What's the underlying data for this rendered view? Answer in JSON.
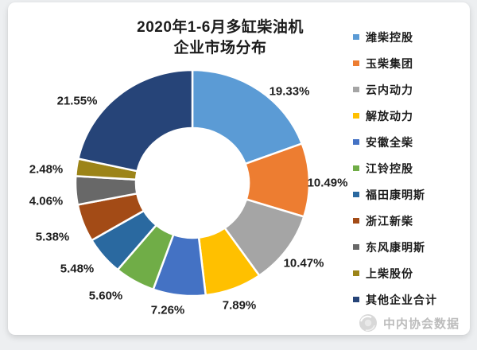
{
  "title": {
    "line1": "2020年1-6月多缸柴油机",
    "line2": "企业市场分布"
  },
  "chart_data": {
    "type": "pie",
    "subtype": "donut",
    "title": "2020年1-6月多缸柴油机企业市场分布",
    "unit": "percent",
    "start_angle_deg": 0,
    "direction": "clockwise",
    "inner_radius_ratio": 0.48,
    "legend_position": "right",
    "series": [
      {
        "name": "潍柴控股",
        "value": 19.33,
        "label": "19.33%",
        "color": "#5B9BD5"
      },
      {
        "name": "玉柴集团",
        "value": 10.49,
        "label": "10.49%",
        "color": "#ED7D31"
      },
      {
        "name": "云内动力",
        "value": 10.47,
        "label": "10.47%",
        "color": "#A5A5A5"
      },
      {
        "name": "解放动力",
        "value": 7.89,
        "label": "7.89%",
        "color": "#FFC000"
      },
      {
        "name": "安徽全柴",
        "value": 7.26,
        "label": "7.26%",
        "color": "#4472C4"
      },
      {
        "name": "江铃控股",
        "value": 5.6,
        "label": "5.60%",
        "color": "#70AD47"
      },
      {
        "name": "福田康明斯",
        "value": 5.48,
        "label": "5.48%",
        "color": "#2A69A0"
      },
      {
        "name": "浙江新柴",
        "value": 5.38,
        "label": "5.38%",
        "color": "#A34B16"
      },
      {
        "name": "东风康明斯",
        "value": 4.06,
        "label": "4.06%",
        "color": "#686868"
      },
      {
        "name": "上柴股份",
        "value": 2.48,
        "label": "2.48%",
        "color": "#9C8418"
      },
      {
        "name": "其他企业合计",
        "value": 21.55,
        "label": "21.55%",
        "color": "#264478"
      }
    ]
  },
  "watermark": {
    "text": "中内协会数据"
  },
  "colors": {
    "page_background": "#edeff1",
    "card_background": "#ffffff",
    "label_text": "#1d1d1d",
    "watermark_text": "#bcbcbc"
  }
}
